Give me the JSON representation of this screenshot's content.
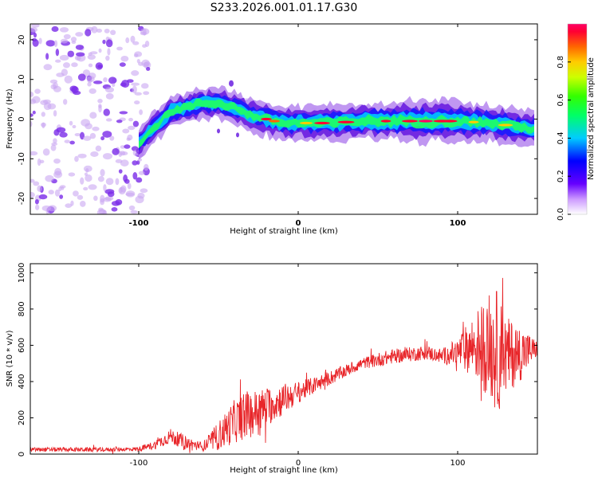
{
  "title": "S233.2026.001.01.17.G30",
  "chart_data": [
    {
      "type": "heatmap",
      "xlabel": "Height of straight line (km)",
      "ylabel": "Frequency (Hz)",
      "xlim": [
        -168,
        150
      ],
      "ylim": [
        -24,
        24
      ],
      "xticks": [
        -100,
        0,
        100
      ],
      "xtick_labels": [
        "-100",
        "0",
        "100"
      ],
      "yticks": [
        -20,
        -10,
        0,
        10,
        20
      ],
      "ytick_labels": [
        "-20",
        "-10",
        "0",
        "10",
        "20"
      ],
      "colorbar": {
        "label": "Normalized spectral amplitude",
        "range": [
          0,
          1
        ],
        "ticks": [
          0.0,
          0.2,
          0.4,
          0.6,
          0.8
        ],
        "tick_labels": [
          "0.0",
          "0.2",
          "0.4",
          "0.6",
          "0.8"
        ]
      },
      "ridge": {
        "x": [
          -100,
          -90,
          -80,
          -70,
          -60,
          -50,
          -40,
          -30,
          -20,
          -10,
          0,
          20,
          40,
          60,
          80,
          100,
          120,
          140,
          148
        ],
        "freq": [
          -6,
          -2,
          2,
          3,
          4,
          4,
          3,
          1,
          0,
          -1,
          -1,
          -1,
          -0.5,
          -0.5,
          -0.5,
          -0.5,
          -1,
          -2,
          -2.5
        ],
        "amplitude": [
          0.35,
          0.4,
          0.45,
          0.4,
          0.45,
          0.5,
          0.45,
          0.5,
          0.55,
          0.55,
          0.5,
          0.7,
          0.75,
          0.8,
          0.95,
          0.85,
          0.7,
          0.6,
          0.5
        ]
      },
      "noise_region_x": [
        -168,
        -100
      ]
    },
    {
      "type": "line",
      "xlabel": "Height of straight line (km)",
      "ylabel": "SNR (10 * v/v)",
      "xlim": [
        -168,
        150
      ],
      "ylim": [
        0,
        1050
      ],
      "xticks": [
        -100,
        0,
        100
      ],
      "xtick_labels": [
        "-100",
        "0",
        "100"
      ],
      "yticks": [
        0,
        200,
        400,
        600,
        800,
        1000
      ],
      "ytick_labels": [
        "0",
        "200",
        "400",
        "600",
        "800",
        "1000"
      ],
      "color": "#e8262a",
      "series": [
        {
          "name": "SNR",
          "x": [
            -168,
            -140,
            -120,
            -100,
            -90,
            -80,
            -70,
            -60,
            -50,
            -40,
            -30,
            -20,
            -10,
            0,
            10,
            20,
            30,
            40,
            50,
            60,
            70,
            80,
            90,
            100,
            110,
            120,
            125,
            130,
            140,
            150
          ],
          "base": [
            25,
            25,
            25,
            28,
            50,
            100,
            60,
            40,
            100,
            180,
            220,
            260,
            300,
            340,
            380,
            420,
            460,
            500,
            520,
            540,
            550,
            560,
            540,
            560,
            600,
            600,
            560,
            540,
            560,
            580
          ],
          "amp": [
            12,
            12,
            12,
            12,
            25,
            40,
            40,
            25,
            80,
            120,
            130,
            110,
            90,
            60,
            45,
            40,
            35,
            30,
            40,
            40,
            40,
            40,
            40,
            80,
            170,
            300,
            350,
            220,
            150,
            40
          ]
        }
      ]
    }
  ]
}
